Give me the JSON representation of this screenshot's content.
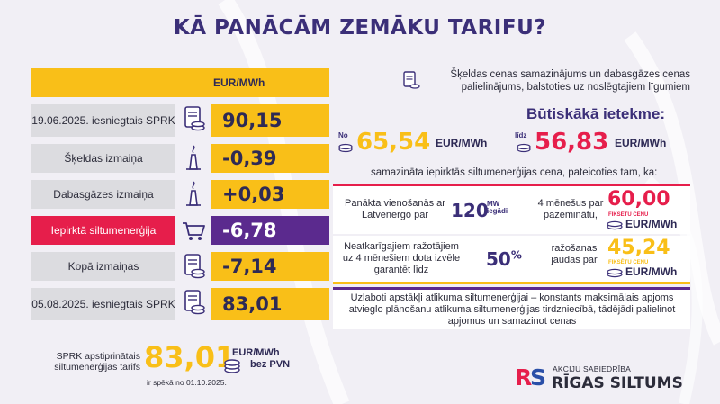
{
  "title": "KĀ PANĀCĀM ZEMĀKU TARIFU?",
  "table": {
    "unit_header": "EUR/MWh",
    "rows": [
      {
        "label": "19.06.2025. iesniegtais SPRK",
        "icon": "document-coins-icon",
        "value": "90,15"
      },
      {
        "label": "Šķeldas izmaiņa",
        "icon": "factory-chimney-icon",
        "value": "-0,39"
      },
      {
        "label": "Dabasgāzes izmaiņa",
        "icon": "factory-chimney-icon",
        "value": "+0,03"
      },
      {
        "label": "Iepirktā siltumenerģija",
        "icon": "shopping-cart-icon",
        "value": "-6,78"
      },
      {
        "label": "Kopā izmaiņas",
        "icon": "document-coins-icon",
        "value": "-7,14"
      },
      {
        "label": "05.08.2025. iesniegtais SPRK",
        "icon": "document-coins-icon",
        "value": "83,01"
      }
    ]
  },
  "tariff": {
    "label": "SPRK apstiprinātais siltumenerģijas tarifs",
    "value": "83,01",
    "unit": "EUR/MWh",
    "unit2": "bez PVN",
    "valid": "ir spēkā no 01.10.2025."
  },
  "right": {
    "note": "Šķeldas cenas samazinājums un dabasgāzes cenas palielinājums, balstoties uz noslēgtajiem līgumiem",
    "impact_heading": "Būtiskākā ietekme:",
    "from_label": "No",
    "from_value": "65,54",
    "to_label": "līdz",
    "to_value": "56,83",
    "unit": "EUR/MWh",
    "reduced_text": "samazināta iepirktās siltumenerģijas cena, pateicoties tam, ka:",
    "box1": {
      "text_a": "Panākta vienošanās ar Latvenergo par",
      "number": "120",
      "number_unit_1": "MW",
      "number_unit_2": "iegādi",
      "text_b": "4 mēnešus par pazeminātu,",
      "price": "60,00",
      "fixed": "FIKSĒTU CENU",
      "price_unit": "EUR/MWh"
    },
    "box2": {
      "text_a": "Neatkarīgajiem ražotājiem uz 4 mēnešiem dota izvēle garantēt līdz",
      "number": "50",
      "number_unit": "%",
      "text_b": "ražošanas jaudas par",
      "price": "45,24",
      "fixed": "FIKSĒTU CENU",
      "price_unit": "EUR/MWh"
    },
    "box3": "Uzlaboti apstākļi atlikuma siltumenerģijai – konstants maksimālais apjoms atvieglo plānošanu atlikuma siltumenerģijas tirdzniecībā, tādējādi palielinot  apjomus un samazinot cenas"
  },
  "logo": {
    "sub": "AKCIJU SABIEDRĪBA",
    "name": "RĪGAS SILTUMS"
  },
  "colors": {
    "yellow": "#f9bf18",
    "red": "#e61e4b",
    "purple": "#5b2a8e",
    "navy": "#3b2f78",
    "grey": "#dcdce0"
  }
}
